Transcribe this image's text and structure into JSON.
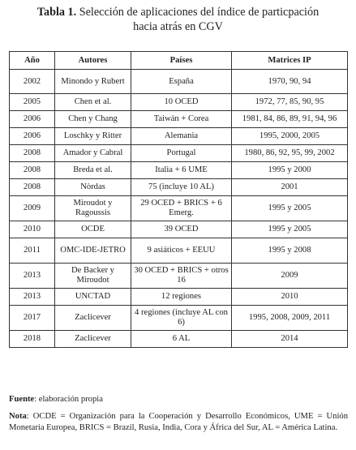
{
  "caption": {
    "lead": "Tabla 1.",
    "line1": "Selección de aplicaciones del índice de particpación",
    "line2": "hacia atrás en CGV"
  },
  "table": {
    "headers": [
      "Año",
      "Autores",
      "Países",
      "Matrices IP"
    ],
    "rows": [
      {
        "year": "2002",
        "authors": "Minondo y Rubert",
        "countries": "España",
        "matrices": "1970, 90, 94"
      },
      {
        "year": "2005",
        "authors": "Chen et al.",
        "countries": "10 OCED",
        "matrices": "1972, 77, 85, 90, 95"
      },
      {
        "year": "2006",
        "authors": "Chen y Chang",
        "countries": "Taiwán + Corea",
        "matrices": "1981, 84, 86, 89, 91, 94, 96"
      },
      {
        "year": "2006",
        "authors": "Loschky y Ritter",
        "countries": "Alemania",
        "matrices": "1995, 2000, 2005"
      },
      {
        "year": "2008",
        "authors": "Amador y Cabral",
        "countries": "Portugal",
        "matrices": "1980, 86, 92, 95, 99, 2002"
      },
      {
        "year": "2008",
        "authors": "Breda et al.",
        "countries": "Italia + 6 UME",
        "matrices": "1995 y 2000"
      },
      {
        "year": "2008",
        "authors": "Nòrdas",
        "countries": "75 (incluye 10 AL)",
        "matrices": "2001"
      },
      {
        "year": "2009",
        "authors": "Miroudot y Ragoussis",
        "countries": "29 OCED + BRICS + 6 Emerg.",
        "matrices": "1995 y 2005"
      },
      {
        "year": "2010",
        "authors": "OCDE",
        "countries": "39 OCED",
        "matrices": "1995 y 2005"
      },
      {
        "year": "2011",
        "authors": "OMC-IDE-JETRO",
        "countries": "9 asiáticos + EEUU",
        "matrices": "1995 y 2008"
      },
      {
        "year": "2013",
        "authors": "De Backer y Miroudot",
        "countries": "30 OCED + BRICS + otros 16",
        "matrices": "2009"
      },
      {
        "year": "2013",
        "authors": "UNCTAD",
        "countries": "12 regiones",
        "matrices": "2010"
      },
      {
        "year": "2017",
        "authors": "Zaclicever",
        "countries": "4 regiones (incluye AL con 6)",
        "matrices": "1995, 2008, 2009, 2011"
      },
      {
        "year": "2018",
        "authors": "Zaclicever",
        "countries": "6 AL",
        "matrices": "2014"
      }
    ]
  },
  "notes": {
    "source_label": "Fuente",
    "source_text": ": elaboración propia",
    "note_label": "Nota",
    "note_text": ": OCDE = Organización para la Cooperación y Desarrollo Económicos, UME = Unión Monetaria Europea, BRICS = Brazil, Rusia, India, Cora y África del Sur, AL = América Latina."
  }
}
